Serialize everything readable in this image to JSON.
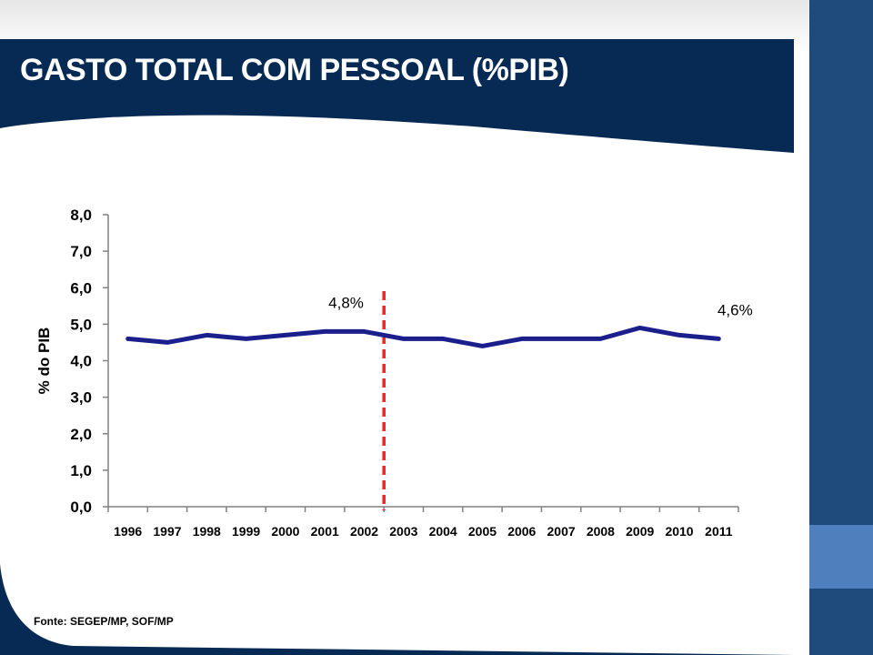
{
  "slide": {
    "title": "GASTO TOTAL COM PESSOAL (%PIB)",
    "source": "Fonte: SEGEP/MP, SOF/MP"
  },
  "colors": {
    "header": "#062a53",
    "side_panel": "#1f4a7c",
    "side_accent": "#4f80bd",
    "line": "#1a1f8c",
    "marker_line": "#e82a2a"
  },
  "chart_data": {
    "type": "line",
    "title": "",
    "xlabel": "",
    "ylabel": "% do PIB",
    "ylim": [
      0,
      8
    ],
    "yticks": [
      "0,0",
      "1,0",
      "2,0",
      "3,0",
      "4,0",
      "5,0",
      "6,0",
      "7,0",
      "8,0"
    ],
    "categories": [
      "1996",
      "1997",
      "1998",
      "1999",
      "2000",
      "2001",
      "2002",
      "2003",
      "2004",
      "2005",
      "2006",
      "2007",
      "2008",
      "2009",
      "2010",
      "2011"
    ],
    "series": [
      {
        "name": "",
        "values": [
          4.6,
          4.5,
          4.7,
          4.6,
          4.7,
          4.8,
          4.8,
          4.6,
          4.6,
          4.4,
          4.6,
          4.6,
          4.6,
          4.9,
          4.7,
          4.6
        ]
      }
    ],
    "grid": false,
    "annotations": [
      {
        "label": "4,8%",
        "category": "2002"
      },
      {
        "label": "4,6%",
        "category": "2011"
      }
    ],
    "reference_line": {
      "between": [
        "2002",
        "2003"
      ],
      "style": "dashed"
    }
  }
}
